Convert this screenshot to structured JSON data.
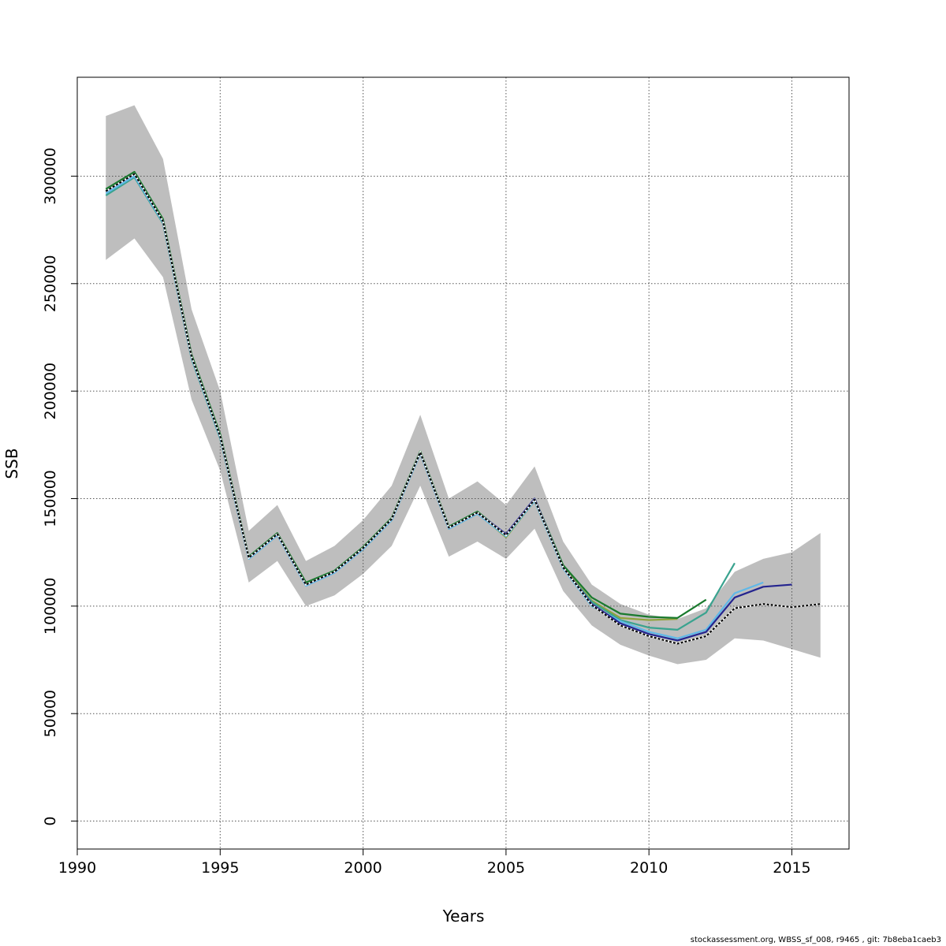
{
  "chart_data": {
    "type": "line",
    "title": "",
    "xlabel": "Years",
    "ylabel": "SSB",
    "xlim": [
      1990,
      2017
    ],
    "ylim": [
      -13000,
      346000
    ],
    "x_ticks": [
      1990,
      1995,
      2000,
      2005,
      2010,
      2015
    ],
    "x_tick_labels": [
      "1990",
      "1995",
      "2000",
      "2005",
      "2010",
      "2015"
    ],
    "y_ticks": [
      0,
      50000,
      100000,
      150000,
      200000,
      250000,
      300000
    ],
    "y_tick_labels": [
      "0",
      "50000",
      "100000",
      "150000",
      "200000",
      "250000",
      "300000"
    ],
    "grid": true,
    "confidence_band": {
      "color": "#bebebe",
      "x": [
        1991,
        1992,
        1993,
        1994,
        1995,
        1996,
        1997,
        1998,
        1999,
        2000,
        2001,
        2002,
        2003,
        2004,
        2005,
        2006,
        2007,
        2008,
        2009,
        2010,
        2011,
        2012,
        2013,
        2014,
        2015,
        2016
      ],
      "lower": [
        261000,
        271000,
        253000,
        196000,
        163000,
        111000,
        121000,
        100000,
        105000,
        115000,
        128000,
        156000,
        123000,
        130000,
        122000,
        136000,
        107000,
        91000,
        82000,
        77000,
        73000,
        75000,
        85000,
        84000,
        80000,
        76000
      ],
      "upper": [
        328000,
        333000,
        308000,
        238000,
        200000,
        135000,
        147000,
        121000,
        128000,
        140000,
        156000,
        189000,
        150000,
        158000,
        147000,
        165000,
        130000,
        110000,
        101000,
        96000,
        94000,
        99000,
        116000,
        122000,
        125000,
        134000
      ]
    },
    "series": [
      {
        "color": "#000000",
        "dashed": true,
        "x": [
          1991,
          1992,
          1993,
          1994,
          1995,
          1996,
          1997,
          1998,
          1999,
          2000,
          2001,
          2002,
          2003,
          2004,
          2005,
          2006,
          2007,
          2008,
          2009,
          2010,
          2011,
          2012,
          2013,
          2014,
          2015,
          2016
        ],
        "values": [
          293000,
          301000,
          279000,
          216000,
          179000,
          122500,
          133500,
          110000,
          116000,
          127000,
          140500,
          171500,
          136500,
          143500,
          133000,
          149500,
          118000,
          100500,
          91000,
          86000,
          82500,
          86000,
          99000,
          101000,
          99500,
          101000
        ]
      },
      {
        "color": "#24248f",
        "dashed": false,
        "x": [
          1991,
          1992,
          1993,
          1994,
          1995,
          1996,
          1997,
          1998,
          1999,
          2000,
          2001,
          2002,
          2003,
          2004,
          2005,
          2006,
          2007,
          2008,
          2009,
          2010,
          2011,
          2012,
          2013,
          2014,
          2015
        ],
        "values": [
          293000,
          301000,
          279000,
          216000,
          179000,
          122500,
          133500,
          110000,
          116000,
          127000,
          140500,
          171500,
          136500,
          143500,
          133500,
          150000,
          118000,
          101000,
          92000,
          87000,
          84000,
          88000,
          104000,
          109000,
          110000
        ]
      },
      {
        "color": "#5fb8e8",
        "dashed": false,
        "x": [
          1991,
          1992,
          1993,
          1994,
          1995,
          1996,
          1997,
          1998,
          1999,
          2000,
          2001,
          2002,
          2003,
          2004,
          2005,
          2006,
          2007,
          2008,
          2009,
          2010,
          2011,
          2012,
          2013,
          2014
        ],
        "values": [
          292000,
          300000,
          278500,
          215500,
          178500,
          122000,
          133000,
          109500,
          115500,
          126500,
          140000,
          171000,
          136000,
          143000,
          132500,
          149000,
          117500,
          100000,
          93000,
          88000,
          85000,
          89000,
          106000,
          111000
        ]
      },
      {
        "color": "#3aa38f",
        "dashed": false,
        "x": [
          1991,
          1992,
          1993,
          1994,
          1995,
          1996,
          1997,
          1998,
          1999,
          2000,
          2001,
          2002,
          2003,
          2004,
          2005,
          2006,
          2007,
          2008,
          2009,
          2010,
          2011,
          2012,
          2013
        ],
        "values": [
          291000,
          299500,
          278000,
          215000,
          178000,
          122000,
          133000,
          110000,
          116000,
          126500,
          140000,
          171000,
          136000,
          143000,
          132500,
          149000,
          117500,
          102000,
          93500,
          90000,
          89000,
          97000,
          120000
        ]
      },
      {
        "color": "#1a7a2e",
        "dashed": false,
        "x": [
          1991,
          1992,
          1993,
          1994,
          1995,
          1996,
          1997,
          1998,
          1999,
          2000,
          2001,
          2002,
          2003,
          2004,
          2005,
          2006,
          2007,
          2008,
          2009,
          2010,
          2011,
          2012
        ],
        "values": [
          294000,
          302000,
          280000,
          217000,
          180000,
          123000,
          134000,
          111000,
          116500,
          127500,
          141000,
          172000,
          137000,
          144000,
          133000,
          150000,
          119000,
          104000,
          96500,
          95000,
          94500,
          103000
        ]
      },
      {
        "color": "#8fa33a",
        "dashed": false,
        "x": [
          1991,
          1992,
          1993,
          1994,
          1995,
          1996,
          1997,
          1998,
          1999,
          2000,
          2001,
          2002,
          2003,
          2004,
          2005,
          2006,
          2007,
          2008,
          2009,
          2010,
          2011
        ],
        "values": [
          293000,
          301000,
          279500,
          216500,
          179000,
          122500,
          133500,
          110500,
          116000,
          127000,
          140500,
          171500,
          136500,
          143500,
          132000,
          149000,
          118000,
          102500,
          94500,
          93500,
          94000
        ]
      }
    ]
  },
  "footer": {
    "credit": "stockassessment.org, WBSS_sf_008, r9465 , git: 7b8eba1caeb3"
  }
}
